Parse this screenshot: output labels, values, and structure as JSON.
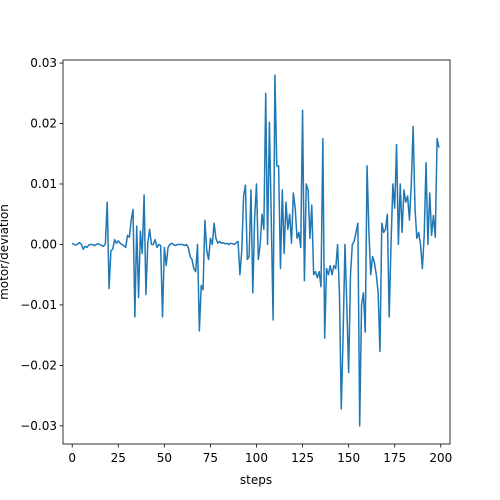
{
  "chart_data": {
    "type": "line",
    "title": "",
    "xlabel": "steps",
    "ylabel": "motor/deviation",
    "xlim": [
      -5,
      205
    ],
    "ylim": [
      -0.033,
      0.0305
    ],
    "xticks": [
      0,
      25,
      50,
      75,
      100,
      125,
      150,
      175,
      200
    ],
    "yticks": [
      -0.03,
      -0.02,
      -0.01,
      0.0,
      0.01,
      0.02,
      0.03
    ],
    "ytick_labels": [
      "−0.03",
      "−0.02",
      "−0.01",
      "0.00",
      "0.01",
      "0.02",
      "0.03"
    ],
    "grid": false,
    "series": [
      {
        "color": "#1f77b4",
        "points": [
          [
            0,
            0.0002
          ],
          [
            1,
            0.0
          ],
          [
            2,
            -0.0001
          ],
          [
            3,
            0.0001
          ],
          [
            4,
            0.0003
          ],
          [
            5,
            0.0
          ],
          [
            6,
            -0.0008
          ],
          [
            7,
            -0.0003
          ],
          [
            8,
            -0.0005
          ],
          [
            9,
            -0.0001
          ],
          [
            10,
            0.0
          ],
          [
            11,
            0.0
          ],
          [
            12,
            -0.0002
          ],
          [
            13,
            0.0
          ],
          [
            14,
            0.0001
          ],
          [
            15,
            0.0
          ],
          [
            16,
            -0.0002
          ],
          [
            17,
            -0.0003
          ],
          [
            18,
            0.0001
          ],
          [
            19,
            0.007
          ],
          [
            20,
            -0.0073
          ],
          [
            21,
            -0.001
          ],
          [
            22,
            -0.0008
          ],
          [
            23,
            0.0008
          ],
          [
            24,
            0.0002
          ],
          [
            25,
            0.0006
          ],
          [
            26,
            0.0002
          ],
          [
            27,
            0.0
          ],
          [
            28,
            -0.0002
          ],
          [
            29,
            -0.0005
          ],
          [
            30,
            0.0015
          ],
          [
            31,
            0.0012
          ],
          [
            32,
            0.004
          ],
          [
            33,
            0.0058
          ],
          [
            34,
            -0.012
          ],
          [
            35,
            0.003
          ],
          [
            36,
            -0.0088
          ],
          [
            37,
            0.0022
          ],
          [
            38,
            -0.0015
          ],
          [
            39,
            0.0082
          ],
          [
            40,
            -0.0083
          ],
          [
            41,
            0.0002
          ],
          [
            42,
            0.0025
          ],
          [
            43,
            0.0
          ],
          [
            44,
            0.0
          ],
          [
            45,
            0.0008
          ],
          [
            46,
            -0.0005
          ],
          [
            47,
            0.0
          ],
          [
            48,
            -0.0002
          ],
          [
            49,
            -0.012
          ],
          [
            50,
            -0.0005
          ],
          [
            51,
            -0.0035
          ],
          [
            52,
            -0.0005
          ],
          [
            53,
            0.0
          ],
          [
            54,
            0.0002
          ],
          [
            55,
            0.0
          ],
          [
            56,
            -0.0002
          ],
          [
            57,
            0.0
          ],
          [
            58,
            0.0
          ],
          [
            59,
            0.0
          ],
          [
            60,
            0.0
          ],
          [
            61,
            -0.0002
          ],
          [
            62,
            0.0
          ],
          [
            63,
            -0.0005
          ],
          [
            64,
            -0.002
          ],
          [
            65,
            -0.0025
          ],
          [
            66,
            -0.004
          ],
          [
            67,
            -0.0045
          ],
          [
            68,
            0.0
          ],
          [
            69,
            -0.0143
          ],
          [
            70,
            -0.0068
          ],
          [
            71,
            -0.0075
          ],
          [
            72,
            0.004
          ],
          [
            73,
            -0.001
          ],
          [
            74,
            -0.0025
          ],
          [
            75,
            0.001
          ],
          [
            76,
            0.0
          ],
          [
            77,
            0.0035
          ],
          [
            78,
            0.001
          ],
          [
            79,
            0.0002
          ],
          [
            80,
            0.0005
          ],
          [
            81,
            0.0002
          ],
          [
            82,
            0.0003
          ],
          [
            83,
            0.0001
          ],
          [
            84,
            0.0002
          ],
          [
            85,
            0.0
          ],
          [
            86,
            0.0002
          ],
          [
            87,
            0.0001
          ],
          [
            88,
            0.0
          ],
          [
            89,
            0.0003
          ],
          [
            90,
            0.0005
          ],
          [
            91,
            -0.005
          ],
          [
            92,
            -0.001
          ],
          [
            93,
            0.008
          ],
          [
            94,
            0.0098
          ],
          [
            95,
            -0.0025
          ],
          [
            96,
            -0.002
          ],
          [
            97,
            0.009
          ],
          [
            98,
            -0.008
          ],
          [
            99,
            0.0045
          ],
          [
            100,
            0.01
          ],
          [
            101,
            -0.0025
          ],
          [
            102,
            0.0
          ],
          [
            103,
            0.005
          ],
          [
            104,
            0.0025
          ],
          [
            105,
            0.025
          ],
          [
            106,
            0.0
          ],
          [
            107,
            0.0202
          ],
          [
            108,
            0.0045
          ],
          [
            109,
            -0.0125
          ],
          [
            110,
            0.028
          ],
          [
            111,
            0.013
          ],
          [
            112,
            0.013
          ],
          [
            113,
            -0.004
          ],
          [
            114,
            0.009
          ],
          [
            115,
            -0.0015
          ],
          [
            116,
            0.007
          ],
          [
            117,
            0.0025
          ],
          [
            118,
            0.005
          ],
          [
            119,
            0.0002
          ],
          [
            120,
            0.0085
          ],
          [
            121,
            0.006
          ],
          [
            122,
            0.001
          ],
          [
            123,
            0.002
          ],
          [
            124,
            -0.0005
          ],
          [
            125,
            0.0222
          ],
          [
            126,
            -0.006
          ],
          [
            127,
            0.01
          ],
          [
            128,
            0.009
          ],
          [
            129,
            0.001
          ],
          [
            130,
            0.0065
          ],
          [
            131,
            -0.005
          ],
          [
            132,
            -0.0045
          ],
          [
            133,
            -0.0055
          ],
          [
            134,
            -0.0045
          ],
          [
            135,
            -0.007
          ],
          [
            136,
            0.0175
          ],
          [
            137,
            -0.0155
          ],
          [
            138,
            -0.004
          ],
          [
            139,
            -0.005
          ],
          [
            140,
            -0.0035
          ],
          [
            141,
            -0.005
          ],
          [
            142,
            -0.0035
          ],
          [
            143,
            -0.004
          ],
          [
            144,
            0.0
          ],
          [
            145,
            -0.008
          ],
          [
            146,
            -0.0272
          ],
          [
            147,
            -0.015
          ],
          [
            148,
            0.0
          ],
          [
            149,
            -0.01
          ],
          [
            150,
            -0.0212
          ],
          [
            151,
            -0.005
          ],
          [
            152,
            0.0
          ],
          [
            153,
            0.0005
          ],
          [
            154,
            0.002
          ],
          [
            155,
            0.0035
          ],
          [
            156,
            -0.03
          ],
          [
            157,
            -0.01
          ],
          [
            158,
            -0.008
          ],
          [
            159,
            -0.0145
          ],
          [
            160,
            0.013
          ],
          [
            161,
            0.002
          ],
          [
            162,
            -0.005
          ],
          [
            163,
            -0.002
          ],
          [
            164,
            -0.003
          ],
          [
            165,
            -0.005
          ],
          [
            166,
            -0.008
          ],
          [
            167,
            -0.0177
          ],
          [
            168,
            0.0035
          ],
          [
            169,
            0.002
          ],
          [
            170,
            0.0025
          ],
          [
            171,
            0.005
          ],
          [
            172,
            -0.012
          ],
          [
            173,
            0.0
          ],
          [
            174,
            0.01
          ],
          [
            175,
            0.006
          ],
          [
            176,
            0.0165
          ],
          [
            177,
            0.0
          ],
          [
            178,
            0.01
          ],
          [
            179,
            0.002
          ],
          [
            180,
            0.009
          ],
          [
            181,
            0.007
          ],
          [
            182,
            0.008
          ],
          [
            183,
            0.004
          ],
          [
            184,
            0.01
          ],
          [
            185,
            0.0195
          ],
          [
            186,
            0.006
          ],
          [
            187,
            0.001
          ],
          [
            188,
            0.002
          ],
          [
            189,
            0.0
          ],
          [
            190,
            -0.004
          ],
          [
            191,
            0.0015
          ],
          [
            192,
            0.0135
          ],
          [
            193,
            0.0
          ],
          [
            194,
            0.0085
          ],
          [
            195,
            0.0015
          ],
          [
            196,
            0.0048
          ],
          [
            197,
            0.0012
          ],
          [
            198,
            0.0175
          ],
          [
            199,
            0.016
          ]
        ]
      }
    ]
  }
}
